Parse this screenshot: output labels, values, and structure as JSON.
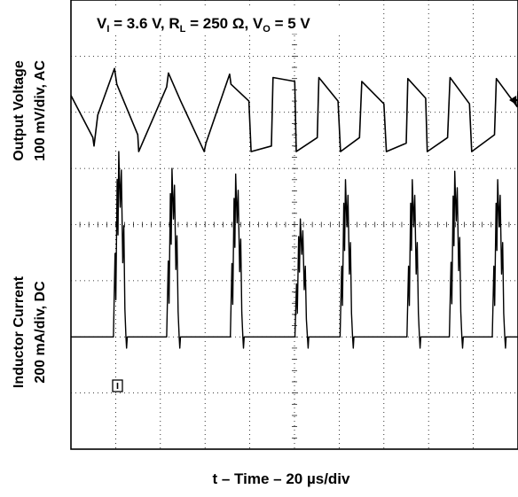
{
  "chart_data": [
    {
      "type": "line",
      "channel": 1,
      "conditions": {
        "vi_label": "V",
        "vi_sub": "I",
        "vi_value": " = 3.6 V, ",
        "rl_label": "R",
        "rl_sub": "L",
        "rl_value": " = 250 Ω, ",
        "vo_label": "V",
        "vo_sub": "O",
        "vo_value": " = 5 V"
      },
      "ylabel_line1": "Output Voltage",
      "ylabel_line2": "100 mV/div, AC",
      "xlabel": "t – Time – 20 µs/div",
      "x_unit": "µs",
      "y_unit": "mV",
      "coupling": "AC",
      "xlim": [
        0,
        200
      ],
      "ylim": [
        -400,
        400
      ],
      "grid": true,
      "series": [
        {
          "x": [
            0,
            9.8,
            10.3,
            12,
            19.5,
            20.5,
            29.9,
            30.3,
            42.8,
            43.6,
            49.1,
            59.6,
            60.4,
            71,
            71.6,
            79.6,
            80.6,
            89.7,
            90.4,
            100.1,
            100.8,
            110.2,
            110.9,
            119.5,
            120.6,
            129.1,
            130.1,
            140,
            141.1,
            150,
            150.7,
            158.7,
            159.4,
            168.5,
            169.6,
            178.3,
            179.3,
            189.5,
            190.3,
            199.6,
            200
          ],
          "y": [
            230,
            155,
            140,
            195,
            278,
            250,
            160,
            130,
            245,
            270,
            220,
            130,
            145,
            268,
            250,
            220,
            130,
            140,
            262,
            255,
            130,
            155,
            262,
            220,
            130,
            155,
            255,
            215,
            130,
            145,
            260,
            225,
            130,
            155,
            262,
            215,
            130,
            160,
            260,
            210,
            238
          ]
        }
      ]
    },
    {
      "type": "line",
      "channel": 2,
      "ylabel_line1": "Inductor Current",
      "ylabel_line2": "200 mA/div, DC",
      "x_unit": "µs",
      "y_unit": "mA",
      "coupling": "DC",
      "xlim": [
        0,
        200
      ],
      "ylim": [
        -400,
        1200
      ],
      "grid": true,
      "pulse_starts": [
        19,
        42.8,
        71.3,
        100.2,
        120.4,
        150.3,
        169.3,
        188.5
      ],
      "pulse_peaks": [
        660,
        600,
        580,
        420,
        560,
        560,
        590,
        560
      ],
      "pulse_rise": 2.4,
      "pulse_fall": 3.2,
      "baseline": 0
    }
  ]
}
